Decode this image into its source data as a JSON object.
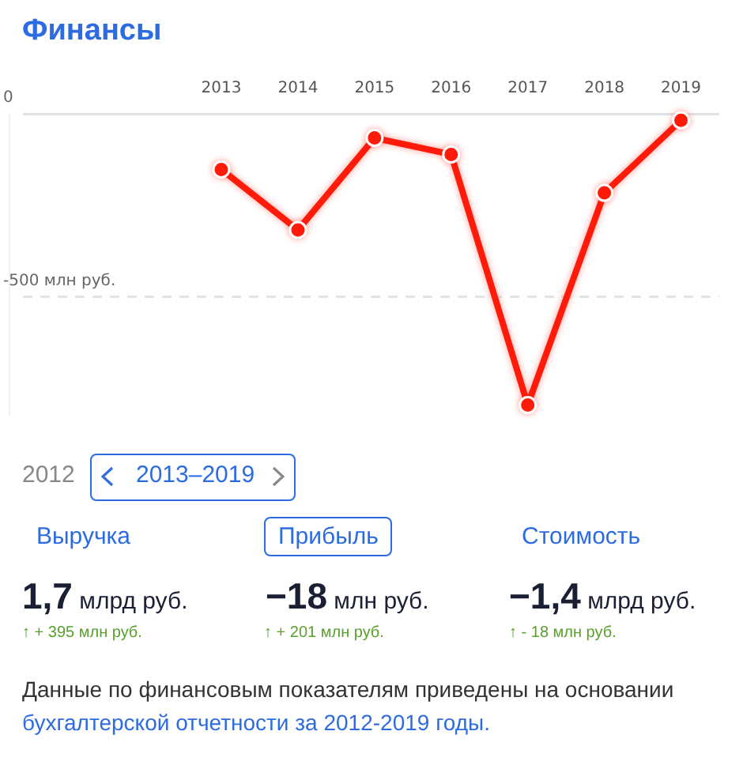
{
  "chart_data": {
    "type": "line",
    "title": "Финансы",
    "x": [
      2013,
      2014,
      2015,
      2016,
      2017,
      2018,
      2019
    ],
    "series": [
      {
        "color": "#ff1a0a",
        "values": [
          -152,
          -317,
          -66,
          -111,
          -795,
          -216,
          -18
        ]
      }
    ],
    "xlim": [
      2010.4,
      2019.5
    ],
    "xticks": [
      2013,
      2014,
      2015,
      2016,
      2017,
      2018,
      2019
    ],
    "ylim": [
      -820,
      0
    ],
    "yticks": [
      {
        "value": 0,
        "label": "0"
      },
      {
        "value": -500,
        "label": "-500 млн руб."
      }
    ],
    "grid": "y",
    "legend": false,
    "marker": "circle",
    "line_style": "solid",
    "annotations": [
      "2012",
      "2013–2019",
      "Выручка",
      "Прибыль",
      "Стоимость",
      "1,7 млрд руб.",
      "−18 млн руб.",
      "−1,4 млрд руб.",
      "↑ + 395 млн руб.",
      "↑ + 201 млн руб.",
      "↑ - 18 млн руб.",
      "Данные по финансовым показателям приведены на основании",
      "бухгалтерской отчетности за 2012-2019 годы."
    ]
  }
}
